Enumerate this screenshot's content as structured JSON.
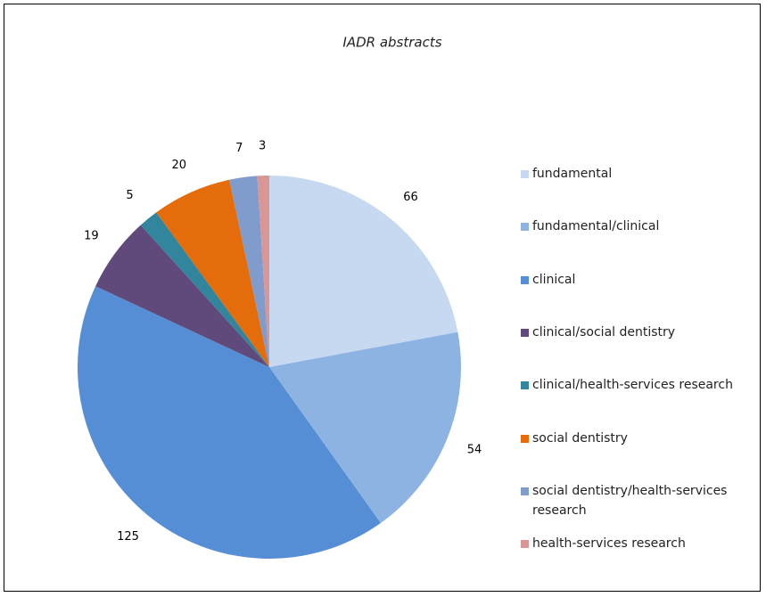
{
  "chart_data": {
    "type": "pie",
    "title": "IADR abstracts",
    "categories": [
      "fundamental",
      "fundamental/clinical",
      "clinical",
      "clinical/social dentistry",
      "clinical/health-services research",
      "social dentistry",
      "social dentistry/health-services research",
      "health-services research"
    ],
    "values": [
      66,
      54,
      125,
      19,
      5,
      20,
      7,
      3
    ],
    "colors": [
      "#c6d9f1",
      "#8db3e2",
      "#558ed5",
      "#604a7b",
      "#31859c",
      "#e46c0a",
      "#7f9ccc",
      "#d99694"
    ],
    "legend": "right"
  }
}
